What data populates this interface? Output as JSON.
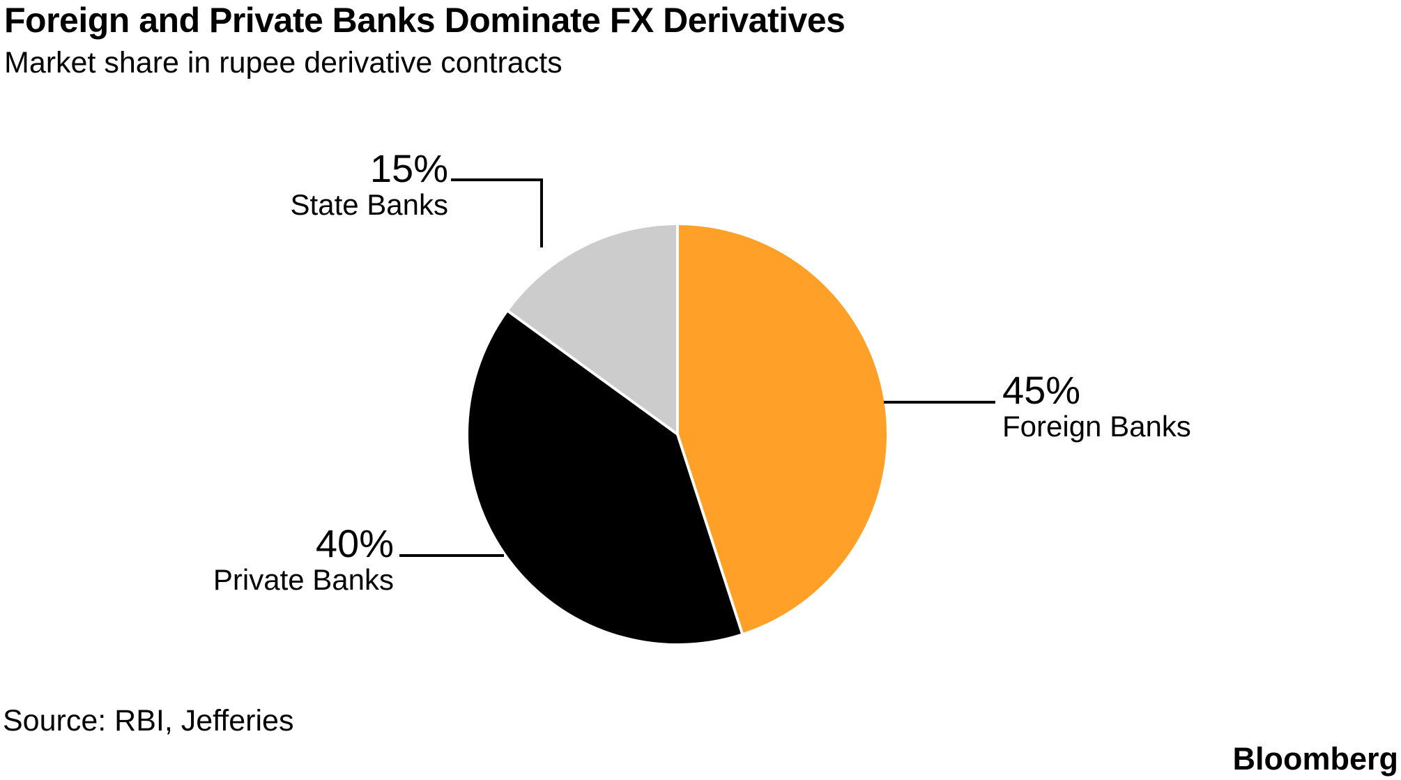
{
  "header": {
    "title": "Foreign and Private Banks Dominate FX Derivatives",
    "subtitle": "Market share in rupee derivative contracts"
  },
  "chart_data": {
    "type": "pie",
    "title": "Foreign and Private Banks Dominate FX Derivatives",
    "subtitle": "Market share in rupee derivative contracts",
    "unit": "%",
    "start_angle": "top",
    "direction": "clockwise",
    "slices": [
      {
        "id": "foreign-banks",
        "label": "Foreign Banks",
        "value": 45,
        "display_value": "45%",
        "color": "#FFA028"
      },
      {
        "id": "private-banks",
        "label": "Private Banks",
        "value": 40,
        "display_value": "40%",
        "color": "#000000"
      },
      {
        "id": "state-banks",
        "label": "State Banks",
        "value": 15,
        "display_value": "15%",
        "color": "#CCCCCC"
      }
    ],
    "separator_color": "#FFFFFF",
    "leader_line_color": "#000000",
    "legend": "none",
    "grid": false
  },
  "footer": {
    "source": "Source: RBI, Jefferies",
    "brand": "Bloomberg"
  }
}
